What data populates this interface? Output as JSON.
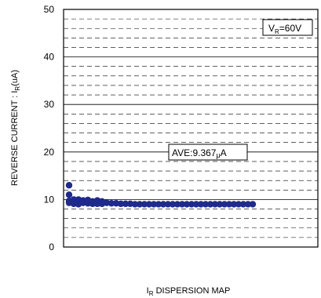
{
  "chart_data": {
    "type": "scatter",
    "title": "",
    "xlabel": {
      "main": "I",
      "sub": "R",
      "rest": " DISPERSION MAP"
    },
    "ylabel": {
      "main": "REVERSE CURRENT : I",
      "sub": "R",
      "rest": "(uA)"
    },
    "ylim": [
      0,
      50
    ],
    "y_ticks": [
      0,
      10,
      20,
      30,
      40,
      50
    ],
    "y_ticks_labels": [
      "0",
      "10",
      "20",
      "30",
      "40",
      "50"
    ],
    "grid": {
      "major": true,
      "minor_dashed": true,
      "minor_step": 2
    },
    "marker_color": "#1f2a8c",
    "annotations": {
      "condition": {
        "main": "V",
        "sub": "R",
        "rest": "=60V"
      },
      "average": {
        "main": "AVE:9.367",
        "mu": "μ",
        "rest": "A"
      }
    },
    "series": [
      {
        "points": [
          {
            "i": 0,
            "y": 13.0
          },
          {
            "i": 0,
            "y": 11.0
          },
          {
            "i": 0,
            "y": 9.7
          },
          {
            "i": 0,
            "y": 9.3
          },
          {
            "i": 1,
            "y": 10.0
          },
          {
            "i": 1,
            "y": 9.5
          },
          {
            "i": 1,
            "y": 9.1
          },
          {
            "i": 2,
            "y": 10.0
          },
          {
            "i": 2,
            "y": 9.4
          },
          {
            "i": 2,
            "y": 9.0
          },
          {
            "i": 3,
            "y": 9.8
          },
          {
            "i": 3,
            "y": 9.3
          },
          {
            "i": 4,
            "y": 9.9
          },
          {
            "i": 4,
            "y": 9.2
          },
          {
            "i": 5,
            "y": 9.6
          },
          {
            "i": 5,
            "y": 9.1
          },
          {
            "i": 6,
            "y": 9.8
          },
          {
            "i": 6,
            "y": 9.1
          },
          {
            "i": 7,
            "y": 9.6
          },
          {
            "i": 7,
            "y": 9.1
          },
          {
            "i": 8,
            "y": 9.3
          },
          {
            "i": 9,
            "y": 9.2
          },
          {
            "i": 10,
            "y": 9.2
          },
          {
            "i": 11,
            "y": 9.1
          },
          {
            "i": 12,
            "y": 9.1
          },
          {
            "i": 13,
            "y": 9.1
          },
          {
            "i": 14,
            "y": 9.0
          },
          {
            "i": 15,
            "y": 9.0
          },
          {
            "i": 16,
            "y": 9.0
          },
          {
            "i": 17,
            "y": 9.0
          },
          {
            "i": 18,
            "y": 9.0
          },
          {
            "i": 19,
            "y": 9.0
          },
          {
            "i": 20,
            "y": 9.0
          },
          {
            "i": 21,
            "y": 9.0
          },
          {
            "i": 22,
            "y": 9.0
          },
          {
            "i": 23,
            "y": 9.0
          },
          {
            "i": 24,
            "y": 9.0
          },
          {
            "i": 25,
            "y": 9.0
          },
          {
            "i": 26,
            "y": 9.0
          },
          {
            "i": 27,
            "y": 9.0
          },
          {
            "i": 28,
            "y": 9.0
          },
          {
            "i": 29,
            "y": 9.0
          },
          {
            "i": 30,
            "y": 9.0
          },
          {
            "i": 31,
            "y": 9.0
          },
          {
            "i": 32,
            "y": 9.0
          },
          {
            "i": 33,
            "y": 9.0
          },
          {
            "i": 34,
            "y": 9.0
          },
          {
            "i": 35,
            "y": 9.0
          },
          {
            "i": 36,
            "y": 9.0
          },
          {
            "i": 37,
            "y": 9.0
          },
          {
            "i": 38,
            "y": 9.0
          },
          {
            "i": 39,
            "y": 9.0
          }
        ]
      }
    ]
  }
}
